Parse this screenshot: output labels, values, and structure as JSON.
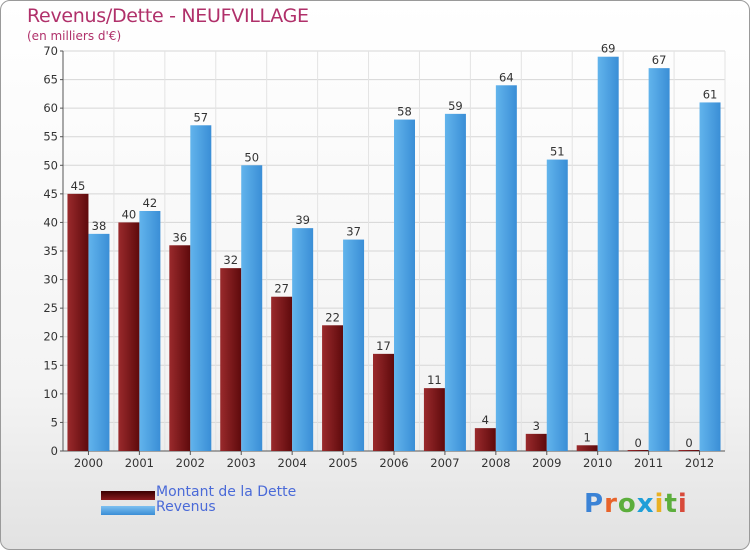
{
  "chart_data": {
    "type": "bar",
    "title": "Revenus/Dette - NEUFVILLAGE",
    "subtitle": "(en milliers d'€)",
    "xlabel": "",
    "ylabel": "",
    "categories": [
      "2000",
      "2001",
      "2002",
      "2003",
      "2004",
      "2005",
      "2006",
      "2007",
      "2008",
      "2009",
      "2010",
      "2011",
      "2012"
    ],
    "series": [
      {
        "name": "Montant de la Dette",
        "color": "#7a1416",
        "values": [
          45,
          40,
          36,
          32,
          27,
          22,
          17,
          11,
          4,
          3,
          1,
          0,
          0
        ]
      },
      {
        "name": "Revenus",
        "color": "#4a9fe0",
        "values": [
          38,
          42,
          57,
          50,
          39,
          37,
          58,
          59,
          64,
          51,
          69,
          67,
          61
        ]
      }
    ],
    "ylim": [
      0,
      70
    ],
    "yticks": [
      0,
      5,
      10,
      15,
      20,
      25,
      30,
      35,
      40,
      45,
      50,
      55,
      60,
      65,
      70
    ],
    "grid": true,
    "legend": "bottom-left",
    "data_labels": true
  },
  "logo": {
    "letters": [
      "P",
      "r",
      "o",
      "x",
      "i",
      "t",
      "i"
    ],
    "colors": [
      "#3b83d6",
      "#e8632a",
      "#5cae3c",
      "#1f9fd8",
      "#e9b023",
      "#5cae3c",
      "#d84a3a"
    ]
  }
}
